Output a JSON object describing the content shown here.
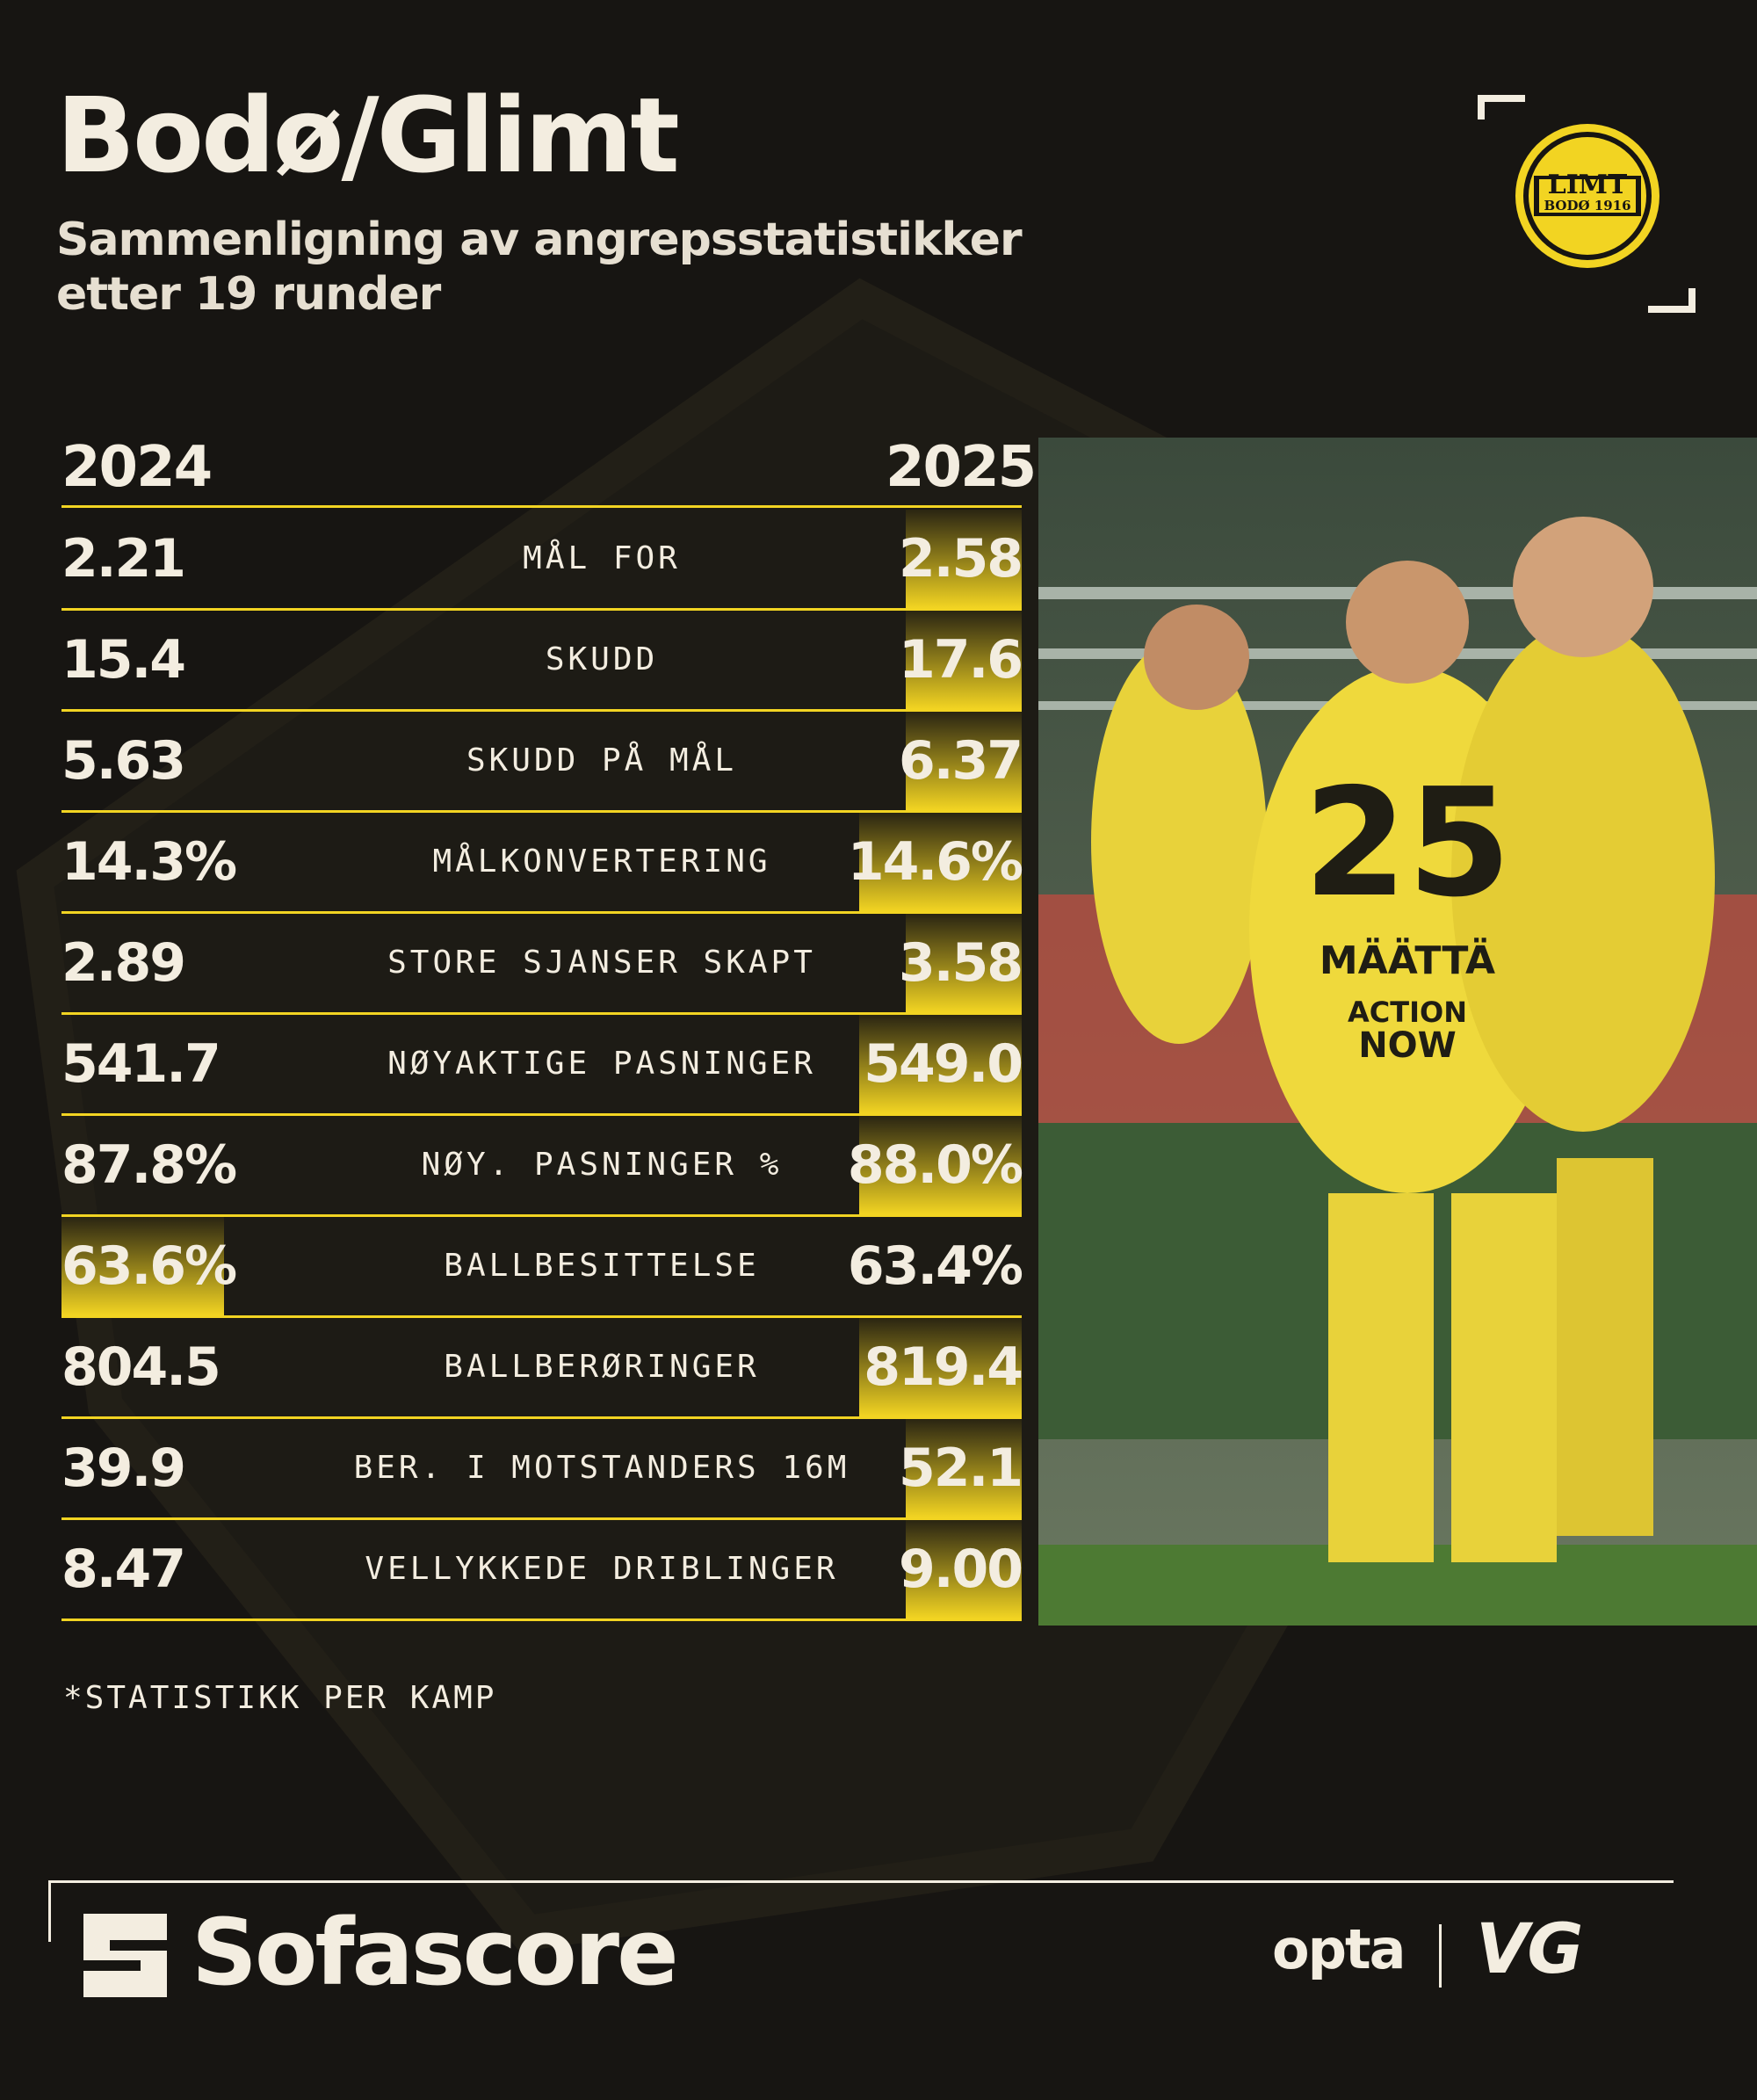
{
  "header": {
    "title": "Bodø/Glimt",
    "subtitle_line1": "Sammenligning av angrepsstatistikker",
    "subtitle_line2": "etter 19 runder"
  },
  "crest": {
    "top_text": "LIMT",
    "bottom_text": "BODØ 1916",
    "color": "#f2d422"
  },
  "table": {
    "year_left": "2024",
    "year_right": "2025",
    "rows": [
      {
        "v2024": "2.21",
        "label": "MÅL FOR",
        "v2025": "2.58",
        "highlight": "2025"
      },
      {
        "v2024": "15.4",
        "label": "SKUDD",
        "v2025": "17.6",
        "highlight": "2025"
      },
      {
        "v2024": "5.63",
        "label": "SKUDD PÅ MÅL",
        "v2025": "6.37",
        "highlight": "2025"
      },
      {
        "v2024": "14.3%",
        "label": "MÅLKONVERTERING",
        "v2025": "14.6%",
        "highlight": "2025"
      },
      {
        "v2024": "2.89",
        "label": "STORE SJANSER SKAPT",
        "v2025": "3.58",
        "highlight": "2025"
      },
      {
        "v2024": "541.7",
        "label": "NØYAKTIGE PASNINGER",
        "v2025": "549.0",
        "highlight": "2025"
      },
      {
        "v2024": "87.8%",
        "label": "NØY. PASNINGER %",
        "v2025": "88.0%",
        "highlight": "2025"
      },
      {
        "v2024": "63.6%",
        "label": "BALLBESITTELSE",
        "v2025": "63.4%",
        "highlight": "2024"
      },
      {
        "v2024": "804.5",
        "label": "BALLBERØRINGER",
        "v2025": "819.4",
        "highlight": "2025"
      },
      {
        "v2024": "39.9",
        "label": "BER. I MOTSTANDERS 16M",
        "v2025": "52.1",
        "highlight": "2025"
      },
      {
        "v2024": "8.47",
        "label": "VELLYKKEDE DRIBLINGER",
        "v2025": "9.00",
        "highlight": "2025"
      }
    ]
  },
  "photo": {
    "shirt_number": "25",
    "player_name": "MÄÄTTÄ",
    "sponsor_line1": "ACTION",
    "sponsor_line2": "NOW"
  },
  "footnote": "*STATISTIKK PER KAMP",
  "footer": {
    "brand": "Sofascore",
    "partner1": "opta",
    "partner2": "VG"
  },
  "colors": {
    "background": "#171512",
    "accent": "#f2d422",
    "text": "#f3ede0"
  }
}
